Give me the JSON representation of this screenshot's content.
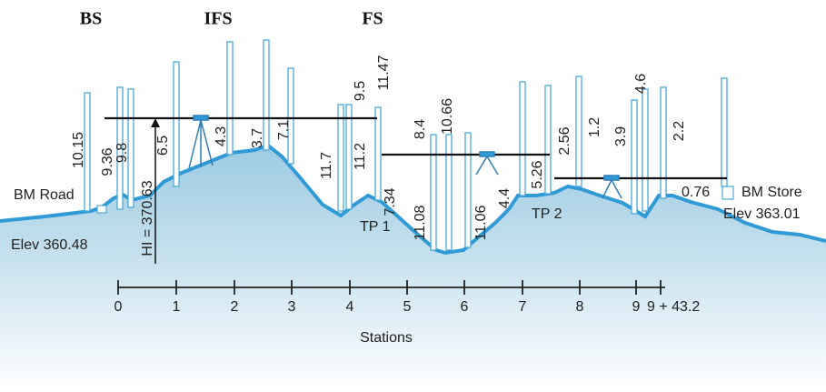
{
  "headers": [
    "BS",
    "IFS",
    "FS"
  ],
  "labels": {
    "bm_road": "BM Road",
    "elev_start": "Elev 360.48",
    "hi": "HI = 370.63",
    "tp1": "TP 1",
    "tp2": "TP 2",
    "bm_store": "BM Store",
    "elev_end": "Elev 363.01"
  },
  "readings": [
    "10.15",
    "9.36",
    "9.8",
    "6.5",
    "4.3",
    "3.7",
    "7.1",
    "11.7",
    "11.2",
    "9.5",
    "11.47",
    "7.34",
    "8.4",
    "10.66",
    "11.08",
    "11.06",
    "4.4",
    "5.26",
    "2.56",
    "1.2",
    "3.9",
    "4.6",
    "2.2",
    "0.76"
  ],
  "stations": [
    "0",
    "1",
    "2",
    "3",
    "4",
    "5",
    "6",
    "7",
    "8",
    "9",
    "9 + 43.2"
  ],
  "axis_title": "Stations"
}
